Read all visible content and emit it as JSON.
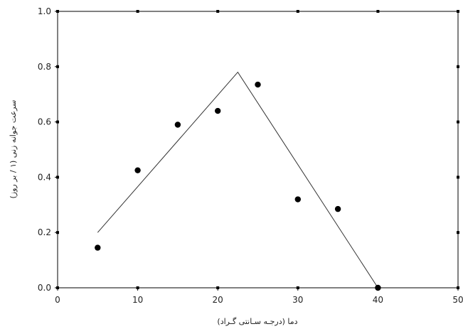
{
  "chart_data": {
    "type": "scatter",
    "xlabel": "دما (درجـه سـانتی گـراد)",
    "ylabel": "سرعت جوانه زنی (۱ / بر روز)",
    "xlim": [
      0,
      50
    ],
    "ylim": [
      0,
      1.0
    ],
    "x_ticks": [
      "0",
      "10",
      "20",
      "30",
      "40",
      "50"
    ],
    "y_ticks": [
      "0.0",
      "0.2",
      "0.4",
      "0.6",
      "0.8",
      "1.0"
    ],
    "grid": false,
    "series": [
      {
        "type": "scatter",
        "points": [
          {
            "x": 5,
            "y": 0.145
          },
          {
            "x": 10,
            "y": 0.425
          },
          {
            "x": 15,
            "y": 0.59
          },
          {
            "x": 20,
            "y": 0.64
          },
          {
            "x": 25,
            "y": 0.735
          },
          {
            "x": 30,
            "y": 0.32
          },
          {
            "x": 35,
            "y": 0.285
          },
          {
            "x": 40,
            "y": 0.0
          }
        ]
      },
      {
        "type": "line",
        "points": [
          {
            "x": 5,
            "y": 0.2
          },
          {
            "x": 22.5,
            "y": 0.78
          },
          {
            "x": 40,
            "y": 0.0
          }
        ]
      }
    ]
  }
}
